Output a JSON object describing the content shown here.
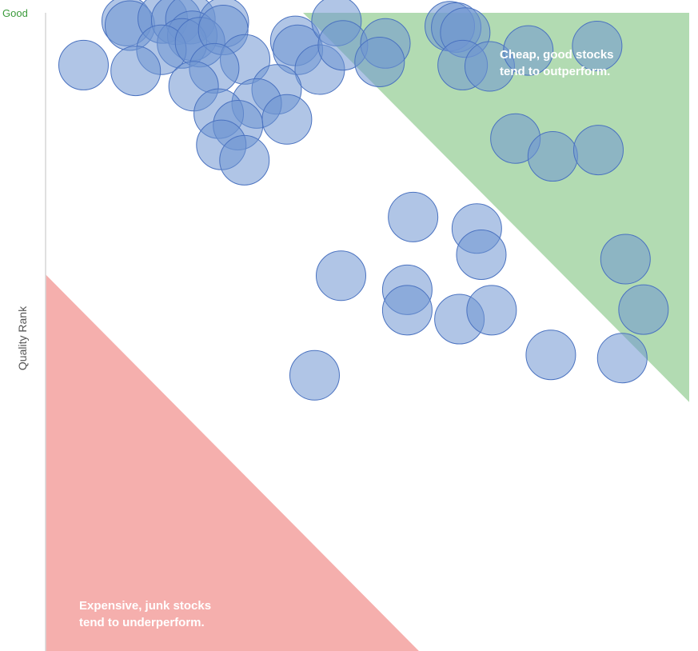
{
  "chart_data": {
    "type": "scatter",
    "title": "",
    "xlabel": "",
    "ylabel": "Quality Rank",
    "y_top_label": "Good",
    "xlim": [
      0,
      100
    ],
    "ylim": [
      0,
      100
    ],
    "grid": false,
    "zones": [
      {
        "name": "outperform",
        "color": "#b2dbb2",
        "note_line1": "Cheap, good stocks",
        "note_line2": "tend to outperform.",
        "polygon": [
          [
            40,
            100
          ],
          [
            100,
            100
          ],
          [
            100,
            39
          ]
        ]
      },
      {
        "name": "underperform",
        "color": "#f5afad",
        "note_line1": "Expensive, junk stocks",
        "note_line2": "tend to underperform.",
        "polygon": [
          [
            0,
            59
          ],
          [
            0,
            0
          ],
          [
            58,
            0
          ]
        ]
      }
    ],
    "marker_color": "#7096d2",
    "marker_stroke": "#4a72c0",
    "points": [
      {
        "x": 12.6,
        "y": 98.7
      },
      {
        "x": 13.1,
        "y": 98.0
      },
      {
        "x": 18.2,
        "y": 99.1
      },
      {
        "x": 20.3,
        "y": 98.9
      },
      {
        "x": 22.5,
        "y": 99.0
      },
      {
        "x": 27.7,
        "y": 98.5
      },
      {
        "x": 22.8,
        "y": 96.4
      },
      {
        "x": 21.2,
        "y": 95.2
      },
      {
        "x": 18.0,
        "y": 94.2
      },
      {
        "x": 24.0,
        "y": 95.4
      },
      {
        "x": 27.6,
        "y": 97.3
      },
      {
        "x": 31.0,
        "y": 92.7
      },
      {
        "x": 26.2,
        "y": 91.3
      },
      {
        "x": 23.0,
        "y": 88.5
      },
      {
        "x": 5.9,
        "y": 91.8
      },
      {
        "x": 14.0,
        "y": 90.9
      },
      {
        "x": 38.8,
        "y": 95.6
      },
      {
        "x": 39.2,
        "y": 94.2
      },
      {
        "x": 42.6,
        "y": 91.1
      },
      {
        "x": 35.9,
        "y": 88.0
      },
      {
        "x": 32.8,
        "y": 85.8
      },
      {
        "x": 26.9,
        "y": 84.2
      },
      {
        "x": 37.5,
        "y": 83.3
      },
      {
        "x": 29.9,
        "y": 82.4
      },
      {
        "x": 27.3,
        "y": 79.3
      },
      {
        "x": 30.9,
        "y": 76.9
      },
      {
        "x": 45.2,
        "y": 98.7
      },
      {
        "x": 46.2,
        "y": 94.9
      },
      {
        "x": 52.8,
        "y": 95.2
      },
      {
        "x": 51.9,
        "y": 92.3
      },
      {
        "x": 62.8,
        "y": 97.9
      },
      {
        "x": 63.8,
        "y": 97.7
      },
      {
        "x": 65.2,
        "y": 96.9
      },
      {
        "x": 64.8,
        "y": 91.8
      },
      {
        "x": 69.0,
        "y": 91.6
      },
      {
        "x": 75.0,
        "y": 94.1
      },
      {
        "x": 85.7,
        "y": 94.8
      },
      {
        "x": 73.0,
        "y": 80.3
      },
      {
        "x": 78.8,
        "y": 77.5
      },
      {
        "x": 85.9,
        "y": 78.5
      },
      {
        "x": 57.1,
        "y": 68.0
      },
      {
        "x": 67.0,
        "y": 66.2
      },
      {
        "x": 67.7,
        "y": 62.1
      },
      {
        "x": 90.1,
        "y": 61.4
      },
      {
        "x": 45.9,
        "y": 58.8
      },
      {
        "x": 56.2,
        "y": 56.6
      },
      {
        "x": 56.2,
        "y": 53.4
      },
      {
        "x": 64.3,
        "y": 52.0
      },
      {
        "x": 69.3,
        "y": 53.4
      },
      {
        "x": 92.9,
        "y": 53.5
      },
      {
        "x": 78.5,
        "y": 46.4
      },
      {
        "x": 89.6,
        "y": 45.9
      },
      {
        "x": 41.8,
        "y": 43.2
      }
    ]
  }
}
